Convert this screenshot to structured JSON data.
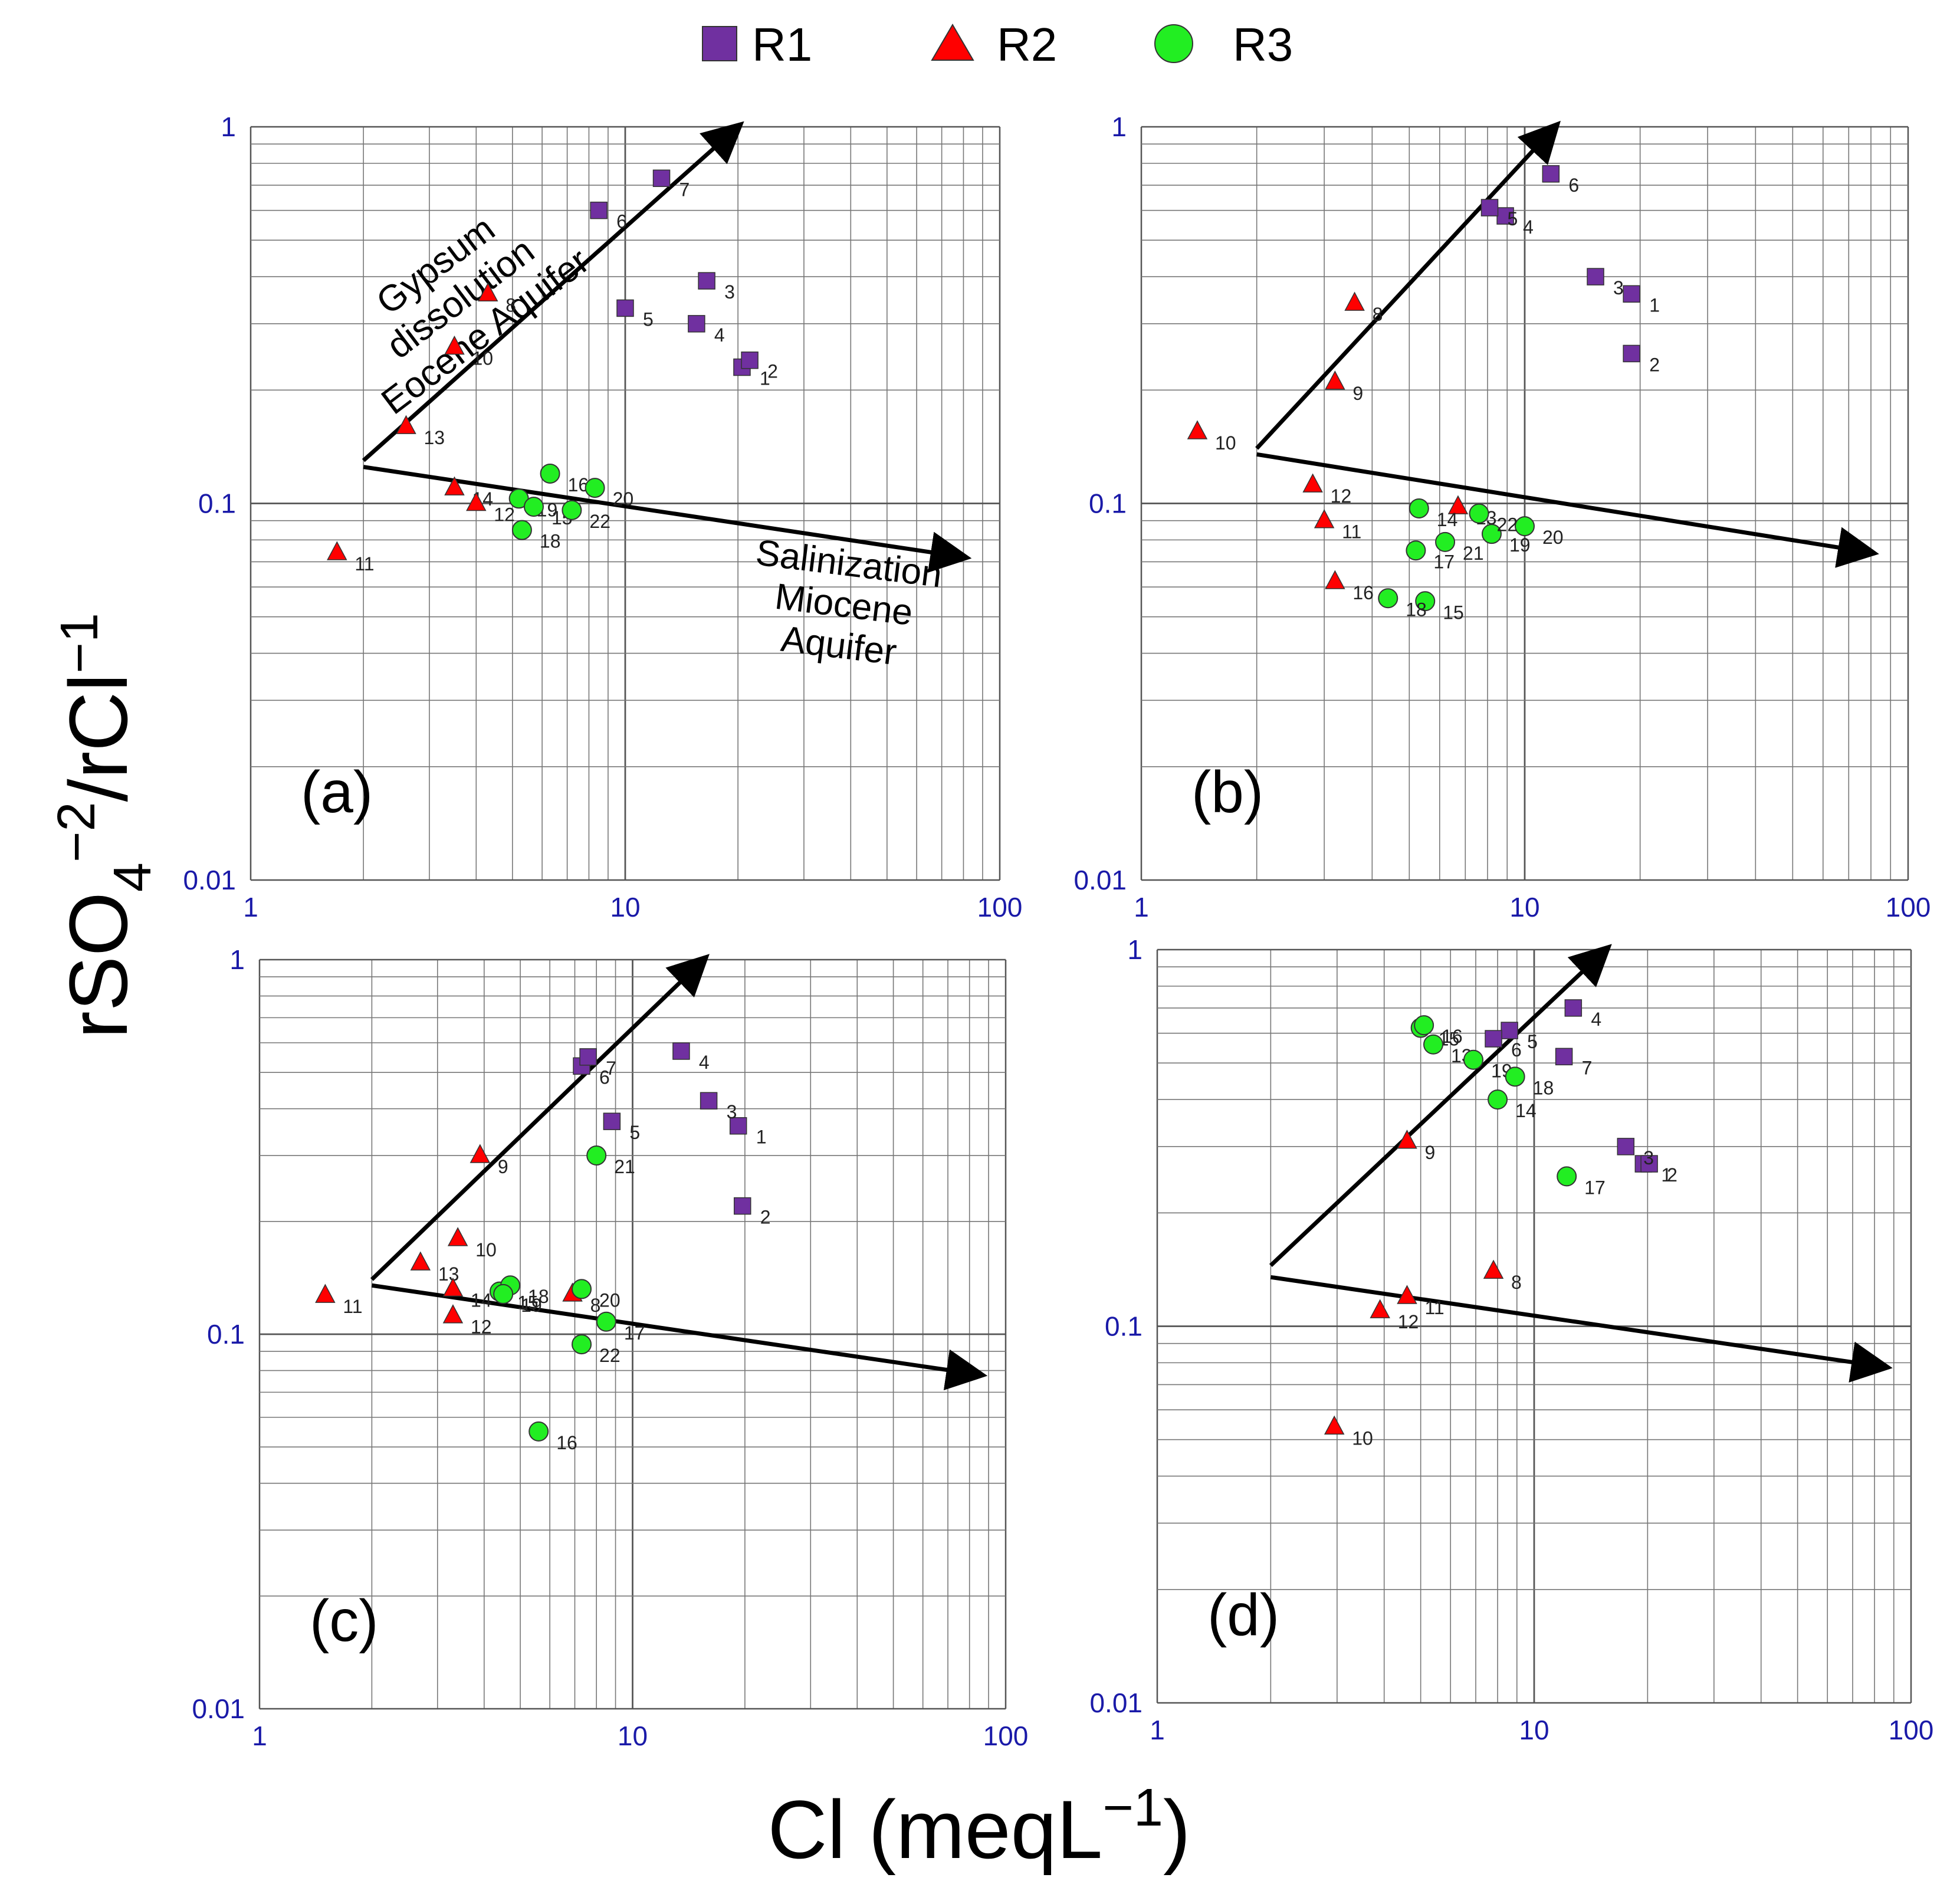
{
  "figure": {
    "ylabel_main": "rSO",
    "ylabel_sub": "4",
    "ylabel_sup1": "−2",
    "ylabel_rest": "/rCl",
    "ylabel_sup2": "−1",
    "xlabel_main": "Cl (meqL",
    "xlabel_sup": "−1",
    "xlabel_close": ")",
    "tick_color": "#1a1aa8",
    "legend": [
      {
        "name": "R1",
        "marker": "square",
        "color": "#7030a0"
      },
      {
        "name": "R2",
        "marker": "triangle",
        "color": "#ff0000"
      },
      {
        "name": "R3",
        "marker": "circle",
        "color": "#22ee22"
      }
    ]
  },
  "chart_data": [
    {
      "type": "scatter",
      "panel_label": "(a)",
      "xscale": "log",
      "yscale": "log",
      "xlim": [
        1,
        100
      ],
      "ylim": [
        0.01,
        1
      ],
      "x_ticks": [
        "1",
        "10",
        "100"
      ],
      "y_ticks": [
        "0.01",
        "0.1",
        "1"
      ],
      "grid": true,
      "arrows": [
        {
          "from": [
            2,
            0.13
          ],
          "to": [
            20,
            1.0
          ]
        },
        {
          "from": [
            2,
            0.125
          ],
          "to": [
            80,
            0.072
          ]
        }
      ],
      "annotations": [
        {
          "lines": [
            "Gypsum",
            "dissolution",
            "Eocene Aquifer"
          ],
          "at": [
            3.8,
            0.33
          ],
          "angle": -37
        },
        {
          "lines": [
            "Salinization",
            "Miocene",
            "Aquifer"
          ],
          "at": [
            38,
            0.05
          ],
          "angle": 7
        }
      ],
      "series": [
        {
          "name": "R1",
          "points": [
            {
              "label": "1",
              "x": 20.5,
              "y": 0.23
            },
            {
              "label": "2",
              "x": 21.5,
              "y": 0.24
            },
            {
              "label": "3",
              "x": 16.5,
              "y": 0.39
            },
            {
              "label": "4",
              "x": 15.5,
              "y": 0.3
            },
            {
              "label": "5",
              "x": 10.0,
              "y": 0.33
            },
            {
              "label": "6",
              "x": 8.5,
              "y": 0.6
            },
            {
              "label": "7",
              "x": 12.5,
              "y": 0.73
            }
          ]
        },
        {
          "name": "R2",
          "points": [
            {
              "label": "8",
              "x": 4.3,
              "y": 0.36
            },
            {
              "label": "10",
              "x": 3.5,
              "y": 0.26
            },
            {
              "label": "13",
              "x": 2.6,
              "y": 0.16
            },
            {
              "label": "14",
              "x": 3.5,
              "y": 0.11
            },
            {
              "label": "12",
              "x": 4.0,
              "y": 0.1
            },
            {
              "label": "11",
              "x": 1.7,
              "y": 0.074
            }
          ]
        },
        {
          "name": "R3",
          "points": [
            {
              "label": "16",
              "x": 6.3,
              "y": 0.12
            },
            {
              "label": "20",
              "x": 8.3,
              "y": 0.11
            },
            {
              "label": "19",
              "x": 5.2,
              "y": 0.103
            },
            {
              "label": "15",
              "x": 5.7,
              "y": 0.098
            },
            {
              "label": "22",
              "x": 7.2,
              "y": 0.096
            },
            {
              "label": "18",
              "x": 5.3,
              "y": 0.085
            }
          ]
        }
      ]
    },
    {
      "type": "scatter",
      "panel_label": "(b)",
      "xscale": "log",
      "yscale": "log",
      "xlim": [
        1,
        100
      ],
      "ylim": [
        0.01,
        1
      ],
      "x_ticks": [
        "1",
        "10",
        "100"
      ],
      "y_ticks": [
        "0.01",
        "0.1",
        "1"
      ],
      "grid": true,
      "arrows": [
        {
          "from": [
            2,
            0.14
          ],
          "to": [
            12,
            1.0
          ]
        },
        {
          "from": [
            2,
            0.135
          ],
          "to": [
            80,
            0.074
          ]
        }
      ],
      "annotations": [],
      "series": [
        {
          "name": "R1",
          "points": [
            {
              "label": "1",
              "x": 19,
              "y": 0.36
            },
            {
              "label": "2",
              "x": 19,
              "y": 0.25
            },
            {
              "label": "3",
              "x": 15.3,
              "y": 0.4
            },
            {
              "label": "4",
              "x": 8.9,
              "y": 0.58
            },
            {
              "label": "5",
              "x": 8.1,
              "y": 0.61
            },
            {
              "label": "6",
              "x": 11.7,
              "y": 0.75
            }
          ]
        },
        {
          "name": "R2",
          "points": [
            {
              "label": "8",
              "x": 3.6,
              "y": 0.34
            },
            {
              "label": "9",
              "x": 3.2,
              "y": 0.21
            },
            {
              "label": "10",
              "x": 1.4,
              "y": 0.155
            },
            {
              "label": "12",
              "x": 2.8,
              "y": 0.112
            },
            {
              "label": "11",
              "x": 3.0,
              "y": 0.09
            },
            {
              "label": "13",
              "x": 6.7,
              "y": 0.098
            },
            {
              "label": "16",
              "x": 3.2,
              "y": 0.062
            }
          ]
        },
        {
          "name": "R3",
          "points": [
            {
              "label": "14",
              "x": 5.3,
              "y": 0.097
            },
            {
              "label": "15",
              "x": 5.5,
              "y": 0.055
            },
            {
              "label": "17",
              "x": 5.2,
              "y": 0.075
            },
            {
              "label": "21",
              "x": 6.2,
              "y": 0.079
            },
            {
              "label": "19",
              "x": 8.2,
              "y": 0.083
            },
            {
              "label": "20",
              "x": 10.0,
              "y": 0.087
            },
            {
              "label": "18",
              "x": 4.4,
              "y": 0.056
            },
            {
              "label": "22",
              "x": 7.6,
              "y": 0.094
            }
          ]
        }
      ]
    },
    {
      "type": "scatter",
      "panel_label": "(c)",
      "xscale": "log",
      "yscale": "log",
      "xlim": [
        1,
        100
      ],
      "ylim": [
        0.01,
        1
      ],
      "x_ticks": [
        "1",
        "10",
        "100"
      ],
      "y_ticks": [
        "0.01",
        "0.1",
        "1"
      ],
      "grid": true,
      "arrows": [
        {
          "from": [
            2,
            0.14
          ],
          "to": [
            15.5,
            1.0
          ]
        },
        {
          "from": [
            2,
            0.135
          ],
          "to": [
            85,
            0.078
          ]
        }
      ],
      "annotations": [],
      "series": [
        {
          "name": "R1",
          "points": [
            {
              "label": "1",
              "x": 19.2,
              "y": 0.36
            },
            {
              "label": "2",
              "x": 19.7,
              "y": 0.22
            },
            {
              "label": "3",
              "x": 16,
              "y": 0.42
            },
            {
              "label": "4",
              "x": 13.5,
              "y": 0.57
            },
            {
              "label": "5",
              "x": 8.8,
              "y": 0.37
            },
            {
              "label": "6",
              "x": 7.3,
              "y": 0.52
            },
            {
              "label": "7",
              "x": 7.6,
              "y": 0.55
            }
          ]
        },
        {
          "name": "R2",
          "points": [
            {
              "label": "9",
              "x": 3.9,
              "y": 0.3
            },
            {
              "label": "10",
              "x": 3.4,
              "y": 0.18
            },
            {
              "label": "13",
              "x": 2.7,
              "y": 0.155
            },
            {
              "label": "11",
              "x": 1.5,
              "y": 0.127
            },
            {
              "label": "12",
              "x": 3.3,
              "y": 0.112
            },
            {
              "label": "14",
              "x": 3.3,
              "y": 0.132
            },
            {
              "label": "8",
              "x": 6.9,
              "y": 0.128
            }
          ]
        },
        {
          "name": "R3",
          "points": [
            {
              "label": "21",
              "x": 8.0,
              "y": 0.3
            },
            {
              "label": "15",
              "x": 4.4,
              "y": 0.13
            },
            {
              "label": "18",
              "x": 4.7,
              "y": 0.135
            },
            {
              "label": "19",
              "x": 4.5,
              "y": 0.128
            },
            {
              "label": "20",
              "x": 7.3,
              "y": 0.132
            },
            {
              "label": "17",
              "x": 8.5,
              "y": 0.108
            },
            {
              "label": "22",
              "x": 7.3,
              "y": 0.094
            },
            {
              "label": "16",
              "x": 5.6,
              "y": 0.055
            }
          ]
        }
      ]
    },
    {
      "type": "scatter",
      "panel_label": "(d)",
      "xscale": "log",
      "yscale": "log",
      "xlim": [
        1,
        100
      ],
      "ylim": [
        0.01,
        1
      ],
      "x_ticks": [
        "1",
        "10",
        "100"
      ],
      "y_ticks": [
        "0.01",
        "0.1",
        "1"
      ],
      "grid": true,
      "arrows": [
        {
          "from": [
            2,
            0.145
          ],
          "to": [
            15.5,
            1.0
          ]
        },
        {
          "from": [
            2,
            0.135
          ],
          "to": [
            85,
            0.078
          ]
        }
      ],
      "annotations": [],
      "series": [
        {
          "name": "R1",
          "points": [
            {
              "label": "1",
              "x": 19.5,
              "y": 0.27
            },
            {
              "label": "2",
              "x": 20.2,
              "y": 0.27
            },
            {
              "label": "3",
              "x": 17.5,
              "y": 0.3
            },
            {
              "label": "4",
              "x": 12.7,
              "y": 0.7
            },
            {
              "label": "5",
              "x": 8.6,
              "y": 0.61
            },
            {
              "label": "6",
              "x": 7.8,
              "y": 0.58
            },
            {
              "label": "7",
              "x": 12.0,
              "y": 0.52
            }
          ]
        },
        {
          "name": "R2",
          "points": [
            {
              "label": "9",
              "x": 4.6,
              "y": 0.31
            },
            {
              "label": "8",
              "x": 7.8,
              "y": 0.14
            },
            {
              "label": "11",
              "x": 4.6,
              "y": 0.12
            },
            {
              "label": "12",
              "x": 3.9,
              "y": 0.11
            },
            {
              "label": "10",
              "x": 2.95,
              "y": 0.054
            }
          ]
        },
        {
          "name": "R3",
          "points": [
            {
              "label": "15",
              "x": 5.0,
              "y": 0.62
            },
            {
              "label": "16",
              "x": 5.1,
              "y": 0.63
            },
            {
              "label": "13",
              "x": 5.4,
              "y": 0.56
            },
            {
              "label": "19",
              "x": 6.9,
              "y": 0.51
            },
            {
              "label": "18",
              "x": 8.9,
              "y": 0.46
            },
            {
              "label": "14",
              "x": 8.0,
              "y": 0.4
            },
            {
              "label": "17",
              "x": 12.2,
              "y": 0.25
            }
          ]
        }
      ]
    }
  ]
}
